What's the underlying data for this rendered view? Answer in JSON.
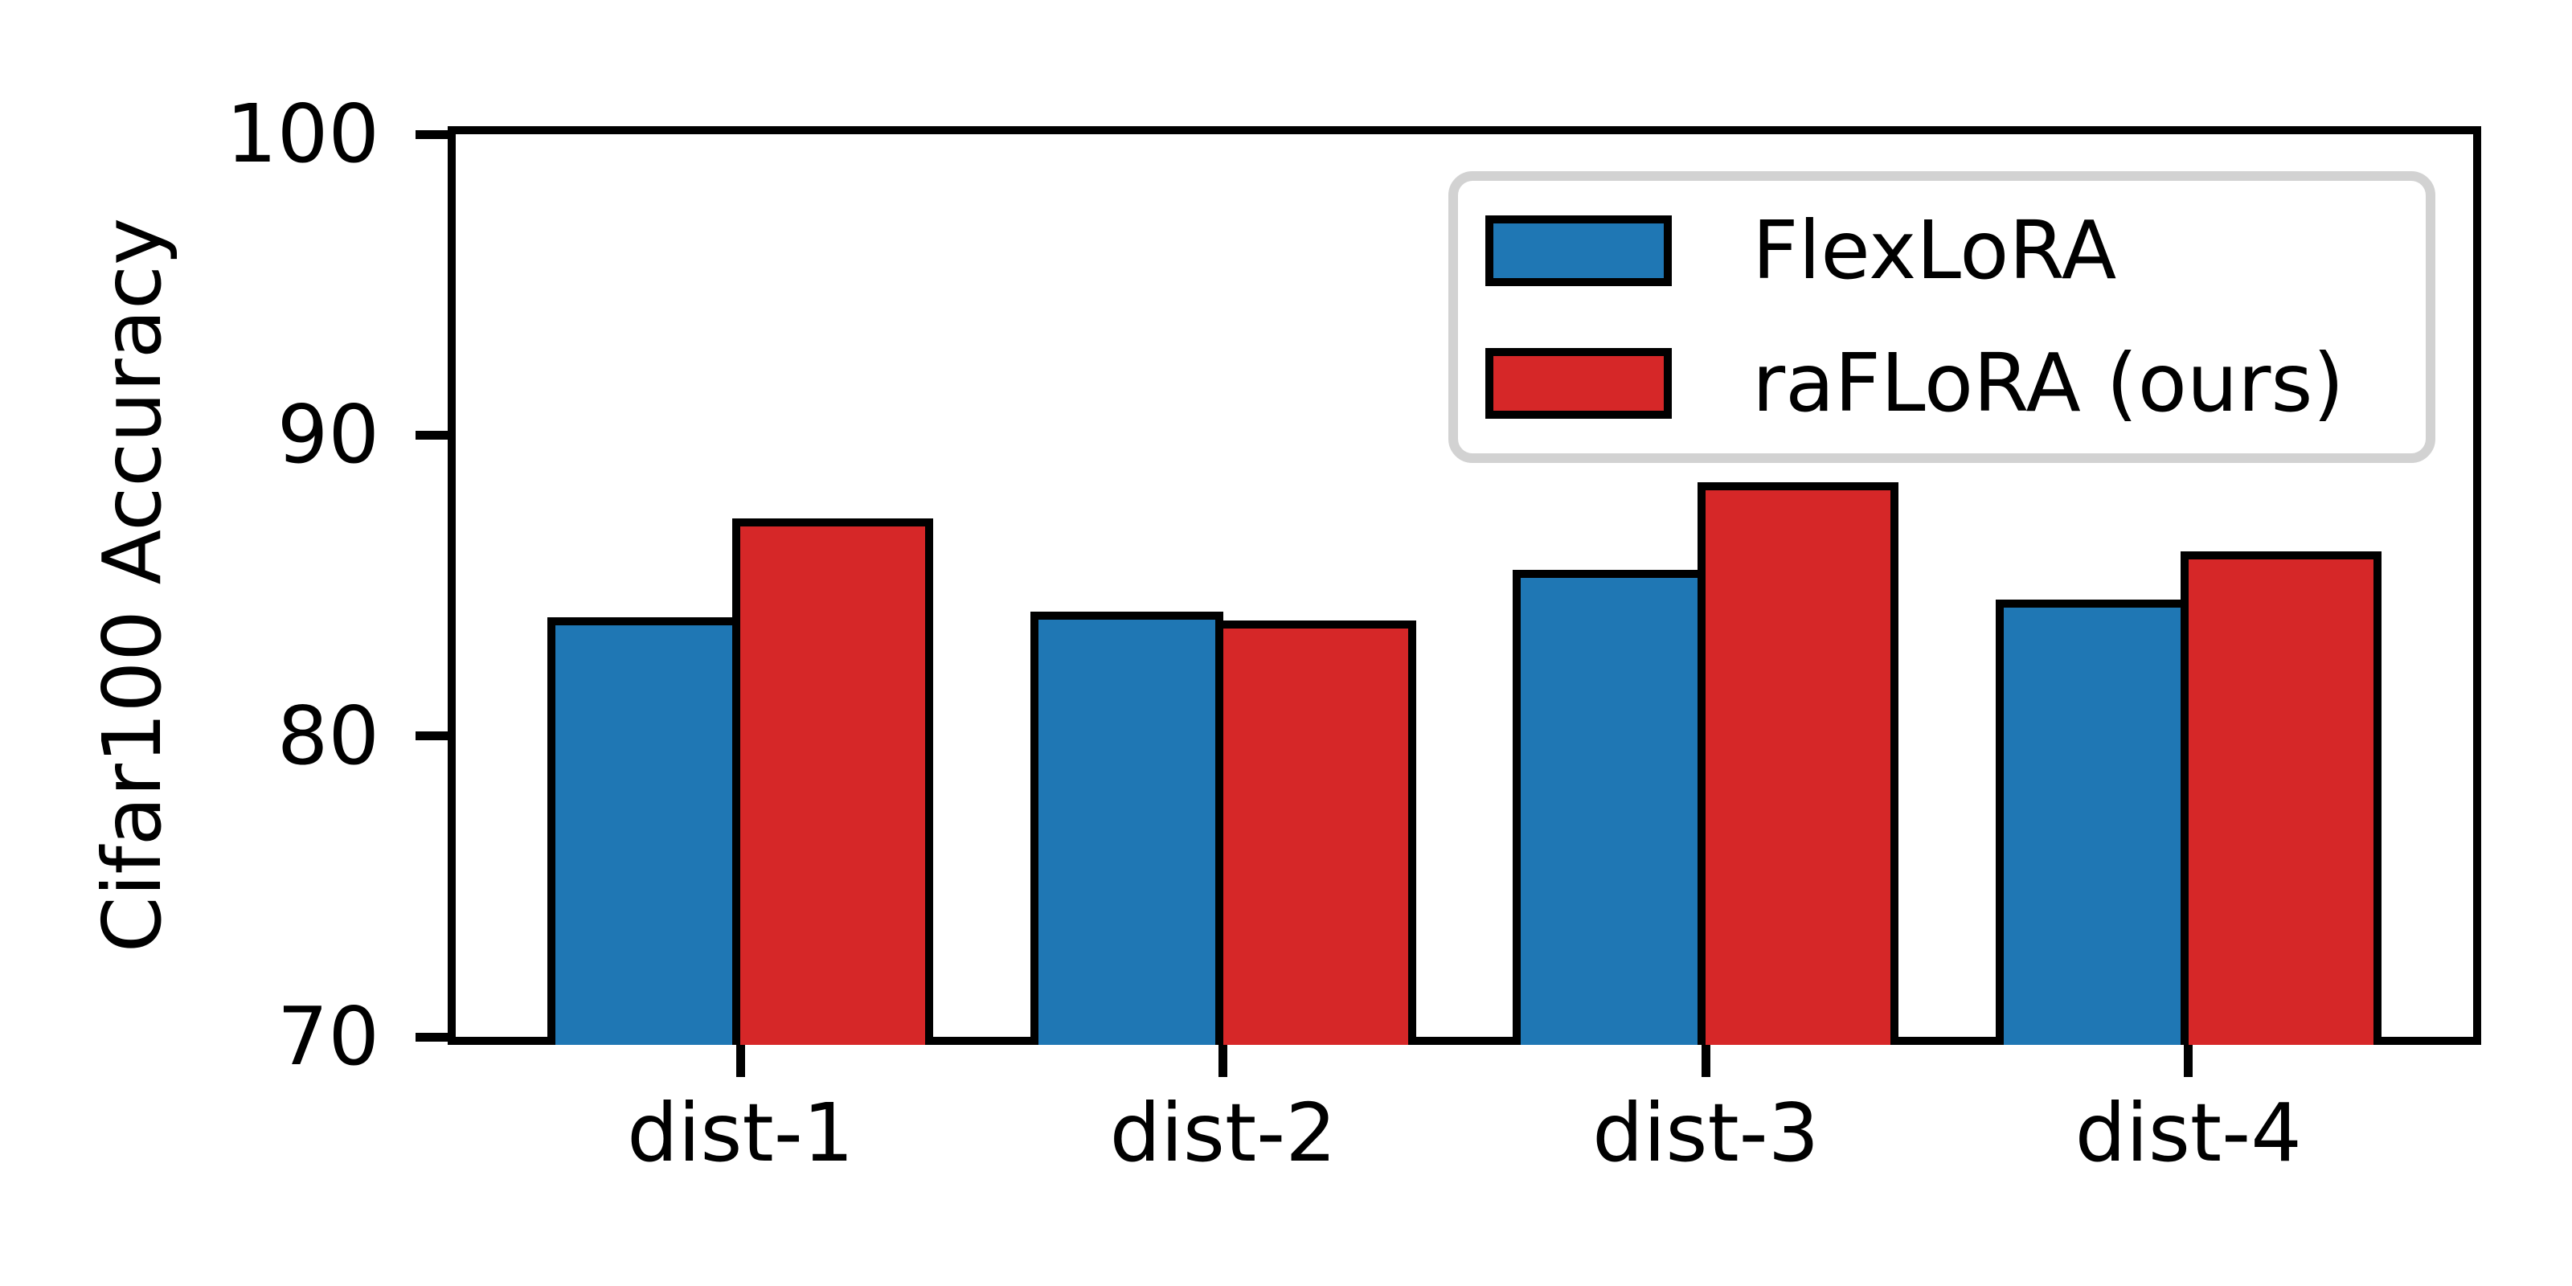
{
  "chart_data": {
    "type": "bar",
    "title": "",
    "xlabel": "",
    "ylabel": "Cifar100 Accuracy",
    "categories": [
      "dist-1",
      "dist-2",
      "dist-3",
      "dist-4"
    ],
    "series": [
      {
        "name": "FlexLoRA",
        "color": "#1f77b4",
        "values": [
          84.2,
          84.4,
          85.8,
          84.8
        ]
      },
      {
        "name": "raFLoRA (ours)",
        "color": "#d62728",
        "values": [
          87.5,
          84.1,
          88.7,
          86.4
        ]
      }
    ],
    "ylim": [
      70,
      100
    ],
    "yticks": [
      70,
      80,
      90,
      100
    ],
    "bar_edge_color": "#000000",
    "grid": false,
    "legend_position": "upper right"
  },
  "legend": {
    "entries": [
      {
        "label": "FlexLoRA"
      },
      {
        "label": "raFLoRA (ours)"
      }
    ]
  }
}
